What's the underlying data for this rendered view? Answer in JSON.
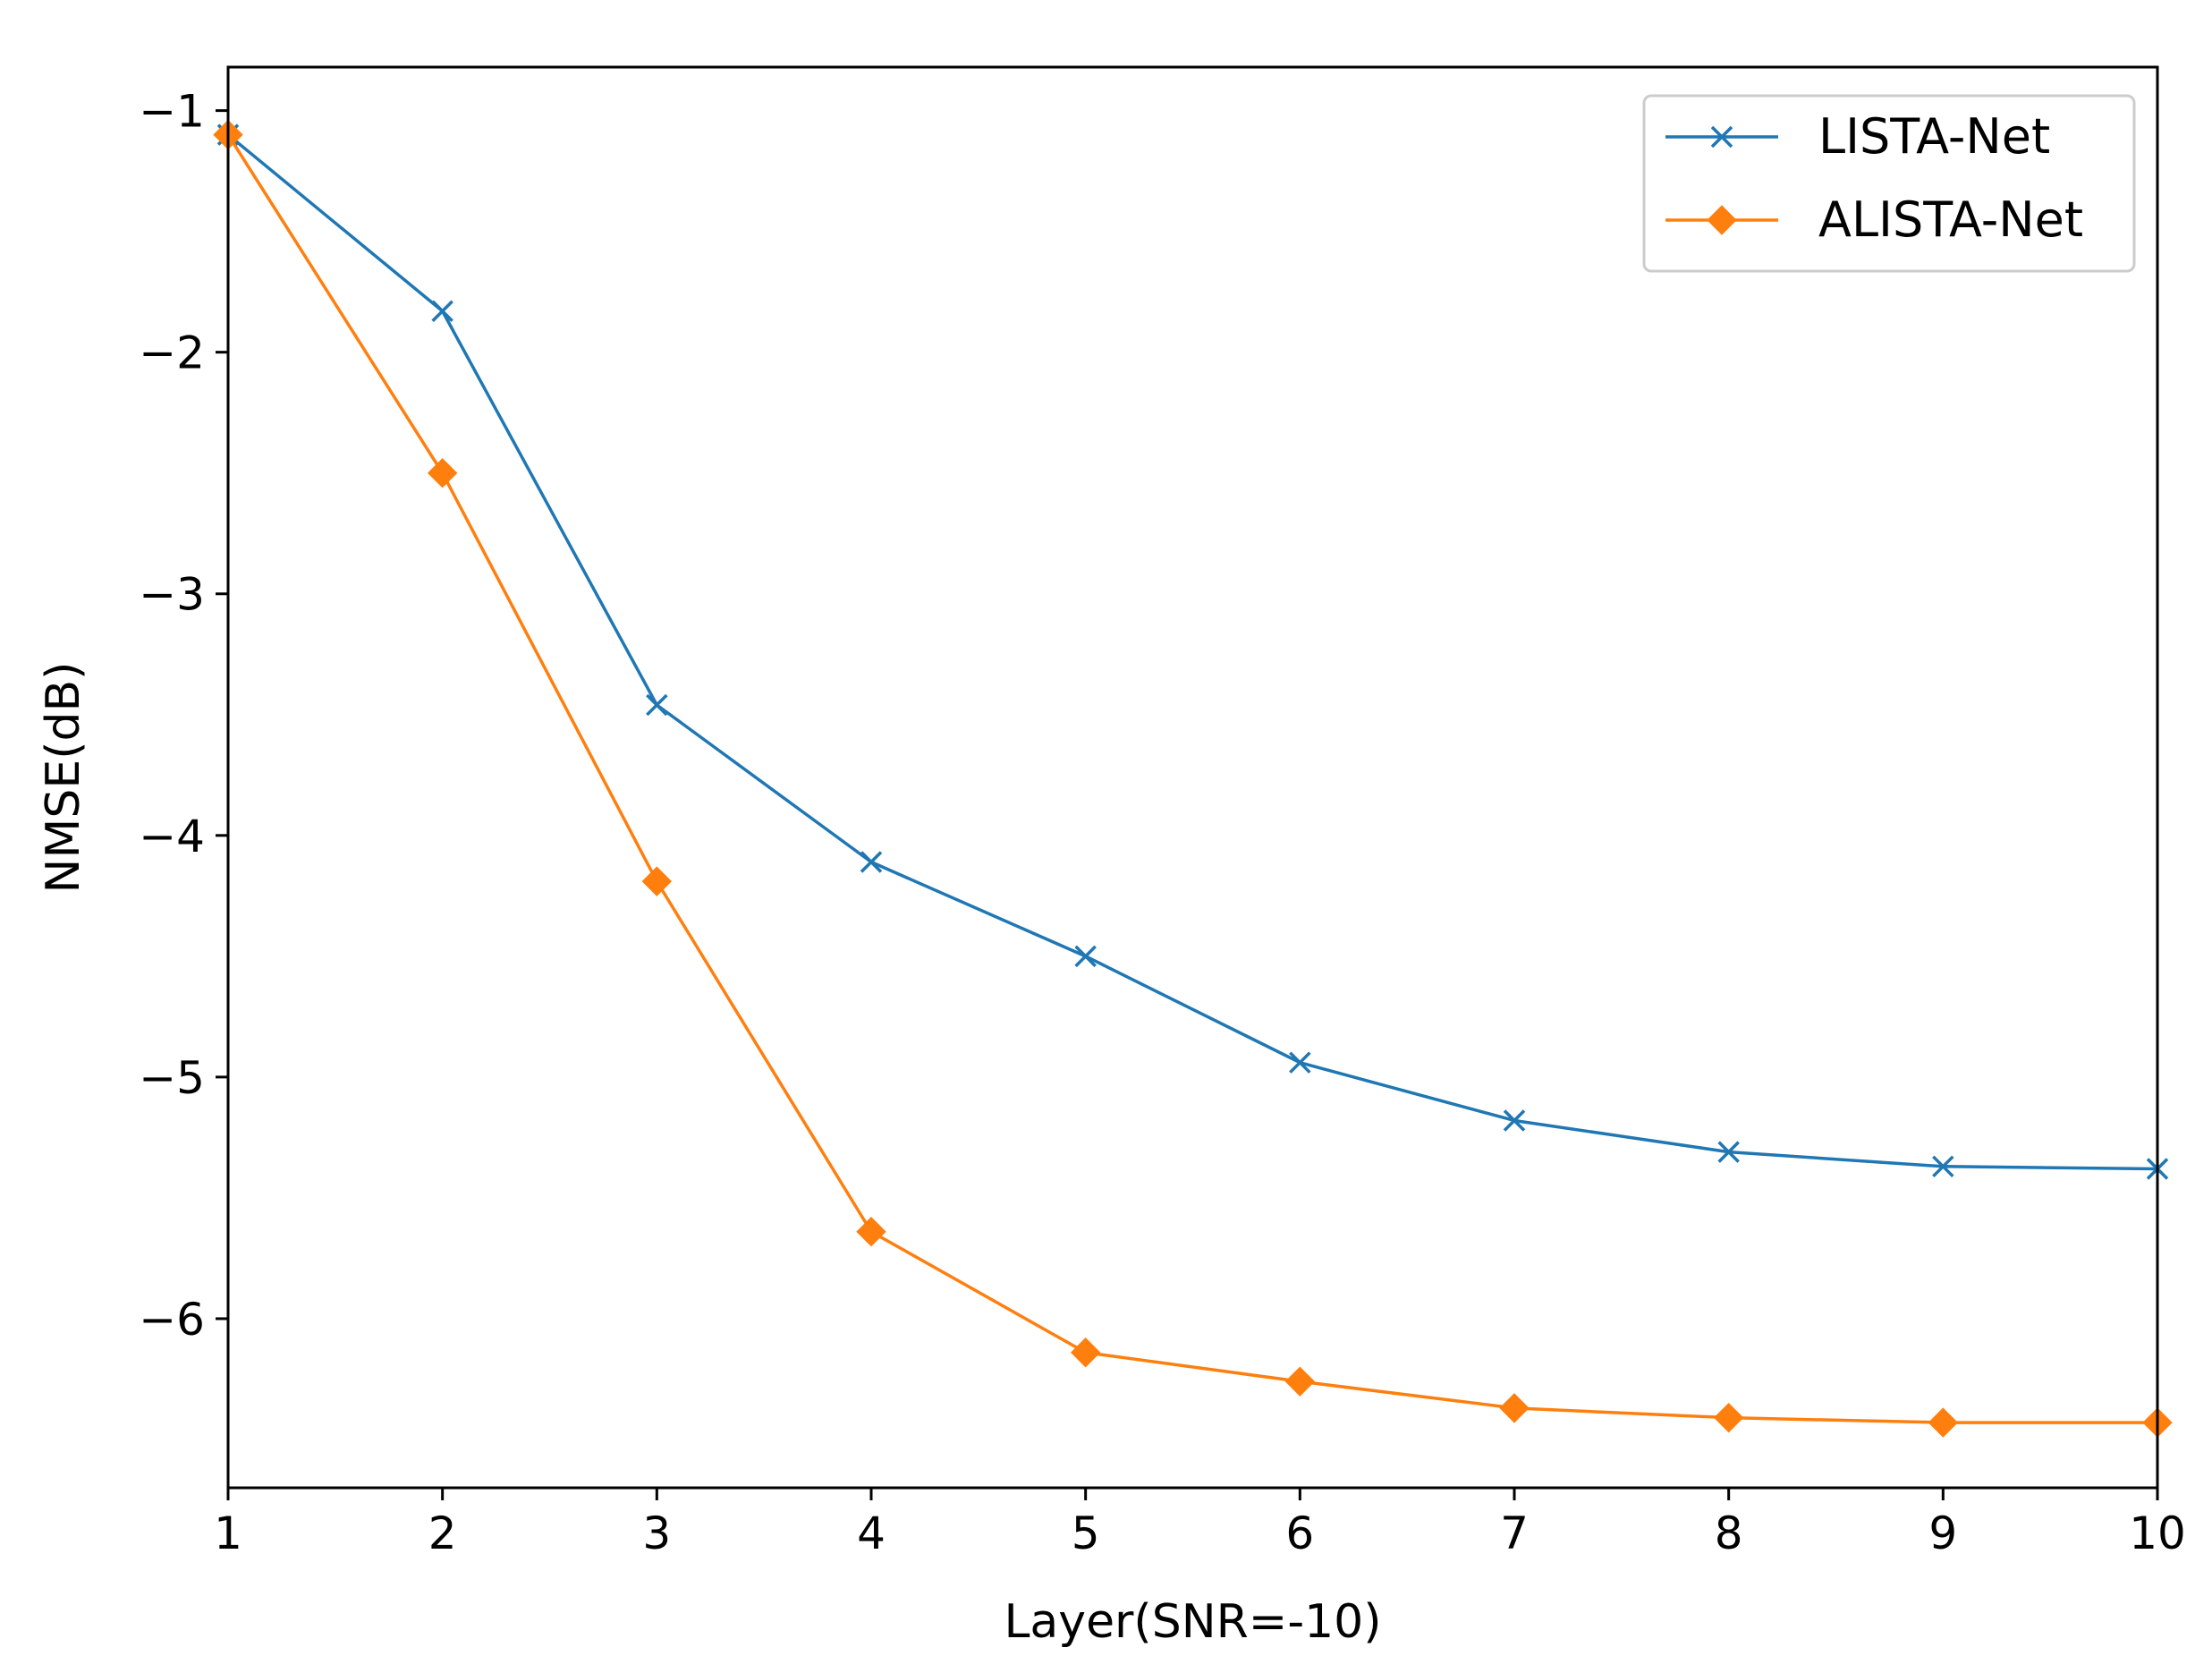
{
  "chart_data": {
    "type": "line",
    "title": "",
    "xlabel": "Layer(SNR=-10)",
    "ylabel": "NMSE(dB)",
    "x": [
      1,
      2,
      3,
      4,
      5,
      6,
      7,
      8,
      9,
      10
    ],
    "xlim": [
      1,
      10
    ],
    "ylim": [
      -6.7,
      -0.82
    ],
    "xticks": [
      1,
      2,
      3,
      4,
      5,
      6,
      7,
      8,
      9,
      10
    ],
    "xtick_labels": [
      "1",
      "2",
      "3",
      "4",
      "5",
      "6",
      "7",
      "8",
      "9",
      "10"
    ],
    "yticks": [
      -1,
      -2,
      -3,
      -4,
      -5,
      -6
    ],
    "ytick_labels": [
      "−1",
      "−2",
      "−3",
      "−4",
      "−5",
      "−6"
    ],
    "grid": false,
    "legend_position": "top-right",
    "series": [
      {
        "name": "LISTA-Net",
        "color": "#1f77b4",
        "marker": "x",
        "values": [
          -1.1,
          -1.83,
          -3.46,
          -4.11,
          -4.5,
          -4.94,
          -5.18,
          -5.31,
          -5.37,
          -5.38
        ]
      },
      {
        "name": "ALISTA-Net",
        "color": "#ff7f0e",
        "marker": "diamond",
        "values": [
          -1.1,
          -2.5,
          -4.19,
          -5.64,
          -6.14,
          -6.26,
          -6.37,
          -6.41,
          -6.43,
          -6.43
        ]
      }
    ]
  }
}
